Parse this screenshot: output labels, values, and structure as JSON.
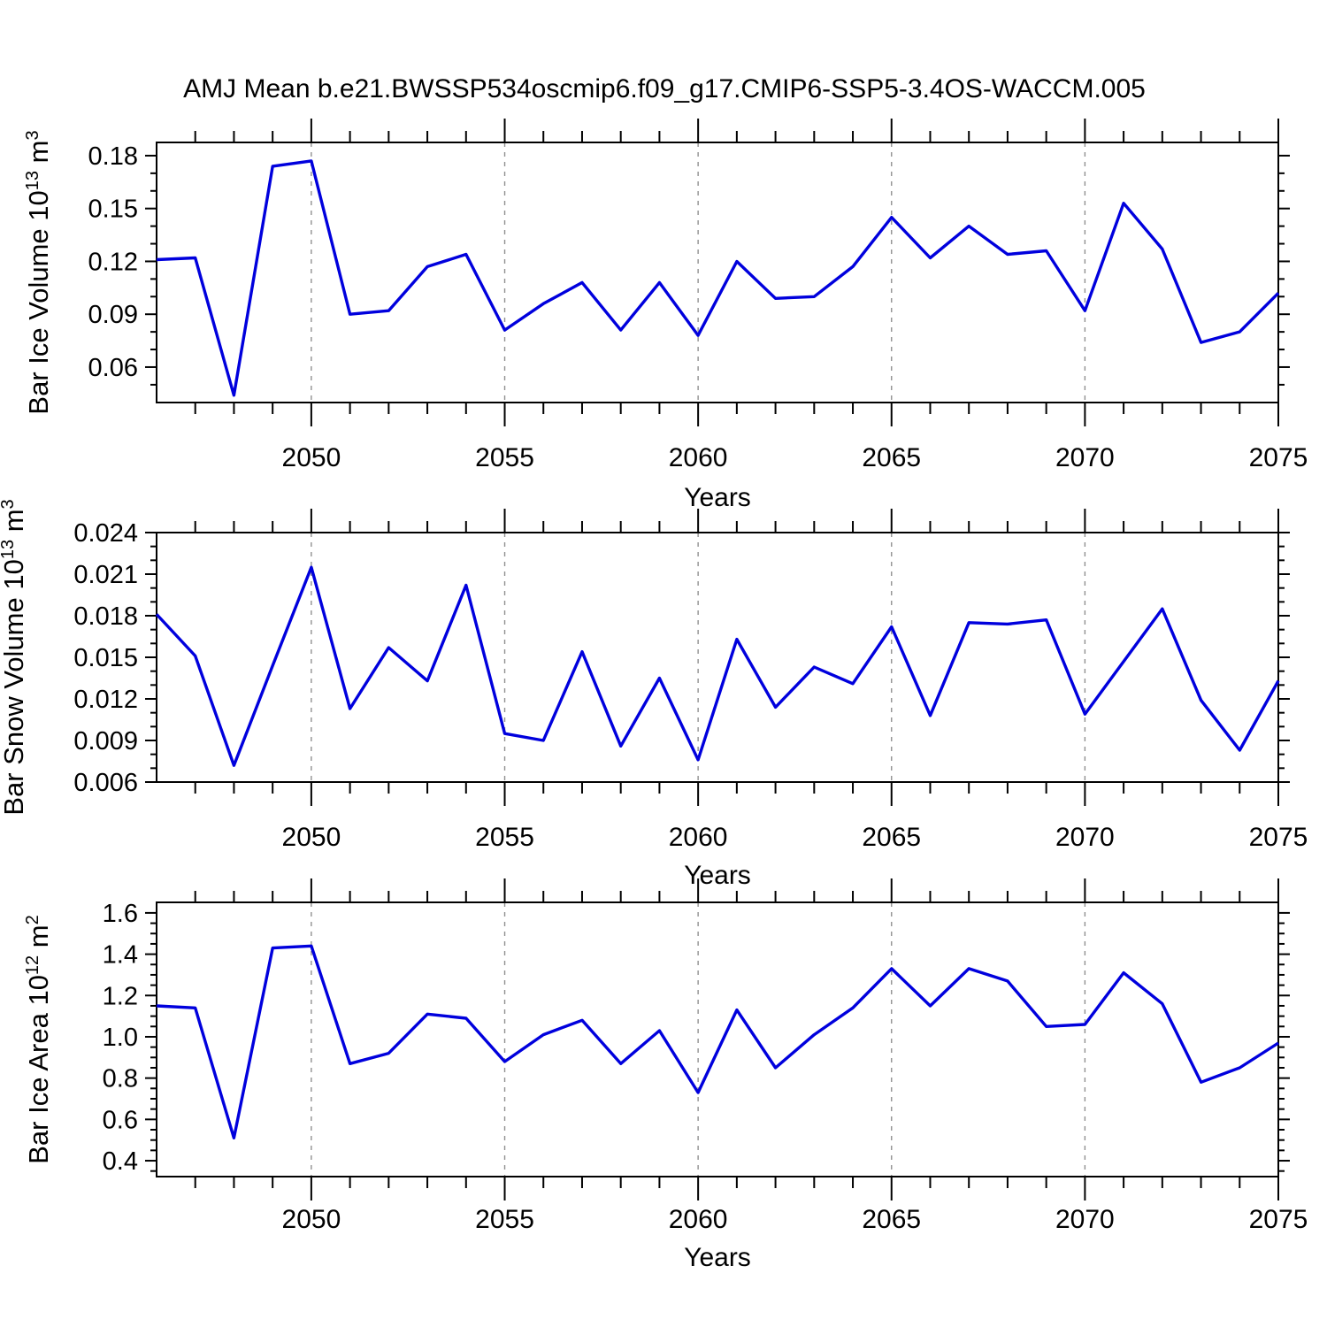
{
  "title": "AMJ Mean b.e21.BWSSP534oscmip6.f09_g17.CMIP6-SSP5-3.4OS-WACCM.005",
  "colors": {
    "line": "#0000dd",
    "frame": "#000000",
    "grid": "#909090",
    "background": "#ffffff",
    "text": "#000000"
  },
  "chart_data": {
    "type": "line",
    "xlabel": "Years",
    "x_years": [
      2046,
      2047,
      2048,
      2049,
      2050,
      2051,
      2052,
      2053,
      2054,
      2055,
      2056,
      2057,
      2058,
      2059,
      2060,
      2061,
      2062,
      2063,
      2064,
      2065,
      2066,
      2067,
      2068,
      2069,
      2070,
      2071,
      2072,
      2073,
      2074,
      2075
    ],
    "x_major_ticks": [
      2050,
      2055,
      2060,
      2065,
      2070,
      2075
    ],
    "x_tick_labels": [
      "2050",
      "2055",
      "2060",
      "2065",
      "2070",
      "2075"
    ],
    "x_gridlines": [
      2050,
      2055,
      2060,
      2065,
      2070
    ],
    "xlim": [
      2046,
      2075
    ],
    "grid_style": "vertical-dashed-at-major-ticks",
    "legend": "none",
    "panels": [
      {
        "ylabel": "Bar Ice Volume 10^13 m^3",
        "ylabel_parts": {
          "main": "Bar Ice Volume 10",
          "exp": "13",
          "unit": " m",
          "unit_exp": "3"
        },
        "line_name": "ice-volume-line",
        "ylim": [
          0.0399,
          0.1875
        ],
        "y_major_ticks": [
          0.06,
          0.09,
          0.12,
          0.15,
          0.18
        ],
        "y_tick_labels": [
          "0.06",
          "0.09",
          "0.12",
          "0.15",
          "0.18"
        ],
        "y_minor_step": 0.01,
        "values": [
          0.121,
          0.122,
          0.044,
          0.174,
          0.177,
          0.09,
          0.092,
          0.117,
          0.124,
          0.081,
          0.096,
          0.108,
          0.081,
          0.108,
          0.078,
          0.12,
          0.099,
          0.1,
          0.117,
          0.145,
          0.122,
          0.14,
          0.124,
          0.126,
          0.092,
          0.153,
          0.127,
          0.074,
          0.08,
          0.102
        ]
      },
      {
        "ylabel": "Bar Snow Volume 10^13 m^3",
        "ylabel_parts": {
          "main": "Bar Snow Volume 10",
          "exp": "13",
          "unit": " m",
          "unit_exp": "3"
        },
        "line_name": "snow-volume-line",
        "ylim": [
          0.006,
          0.024
        ],
        "y_major_ticks": [
          0.006,
          0.009,
          0.012,
          0.015,
          0.018,
          0.021,
          0.024
        ],
        "y_tick_labels": [
          "0.006",
          "0.009",
          "0.012",
          "0.015",
          "0.018",
          "0.021",
          "0.024"
        ],
        "y_minor_step": 0.001,
        "values": [
          0.0181,
          0.0151,
          0.0072,
          0.0144,
          0.0215,
          0.0113,
          0.0157,
          0.0133,
          0.0202,
          0.0095,
          0.009,
          0.0154,
          0.0086,
          0.0135,
          0.0076,
          0.0163,
          0.0114,
          0.0143,
          0.0131,
          0.0172,
          0.0108,
          0.0175,
          0.0174,
          0.0177,
          0.0109,
          0.0147,
          0.0185,
          0.0119,
          0.0083,
          0.0133
        ]
      },
      {
        "ylabel": "Bar Ice Area 10^12 m^2",
        "ylabel_parts": {
          "main": "Bar Ice Area 10",
          "exp": "12",
          "unit": " m",
          "unit_exp": "2"
        },
        "line_name": "ice-area-line",
        "ylim": [
          0.323,
          1.651
        ],
        "y_major_ticks": [
          0.4,
          0.6,
          0.8,
          1.0,
          1.2,
          1.4,
          1.6
        ],
        "y_tick_labels": [
          "0.4",
          "0.6",
          "0.8",
          "1.0",
          "1.2",
          "1.4",
          "1.6"
        ],
        "y_minor_step": 0.05,
        "values": [
          1.15,
          1.14,
          0.51,
          1.43,
          1.44,
          0.87,
          0.92,
          1.11,
          1.09,
          0.88,
          1.01,
          1.08,
          0.87,
          1.03,
          0.73,
          1.13,
          0.85,
          1.01,
          1.14,
          1.33,
          1.15,
          1.33,
          1.27,
          1.05,
          1.06,
          1.31,
          1.16,
          0.78,
          0.85,
          0.97
        ]
      }
    ]
  }
}
